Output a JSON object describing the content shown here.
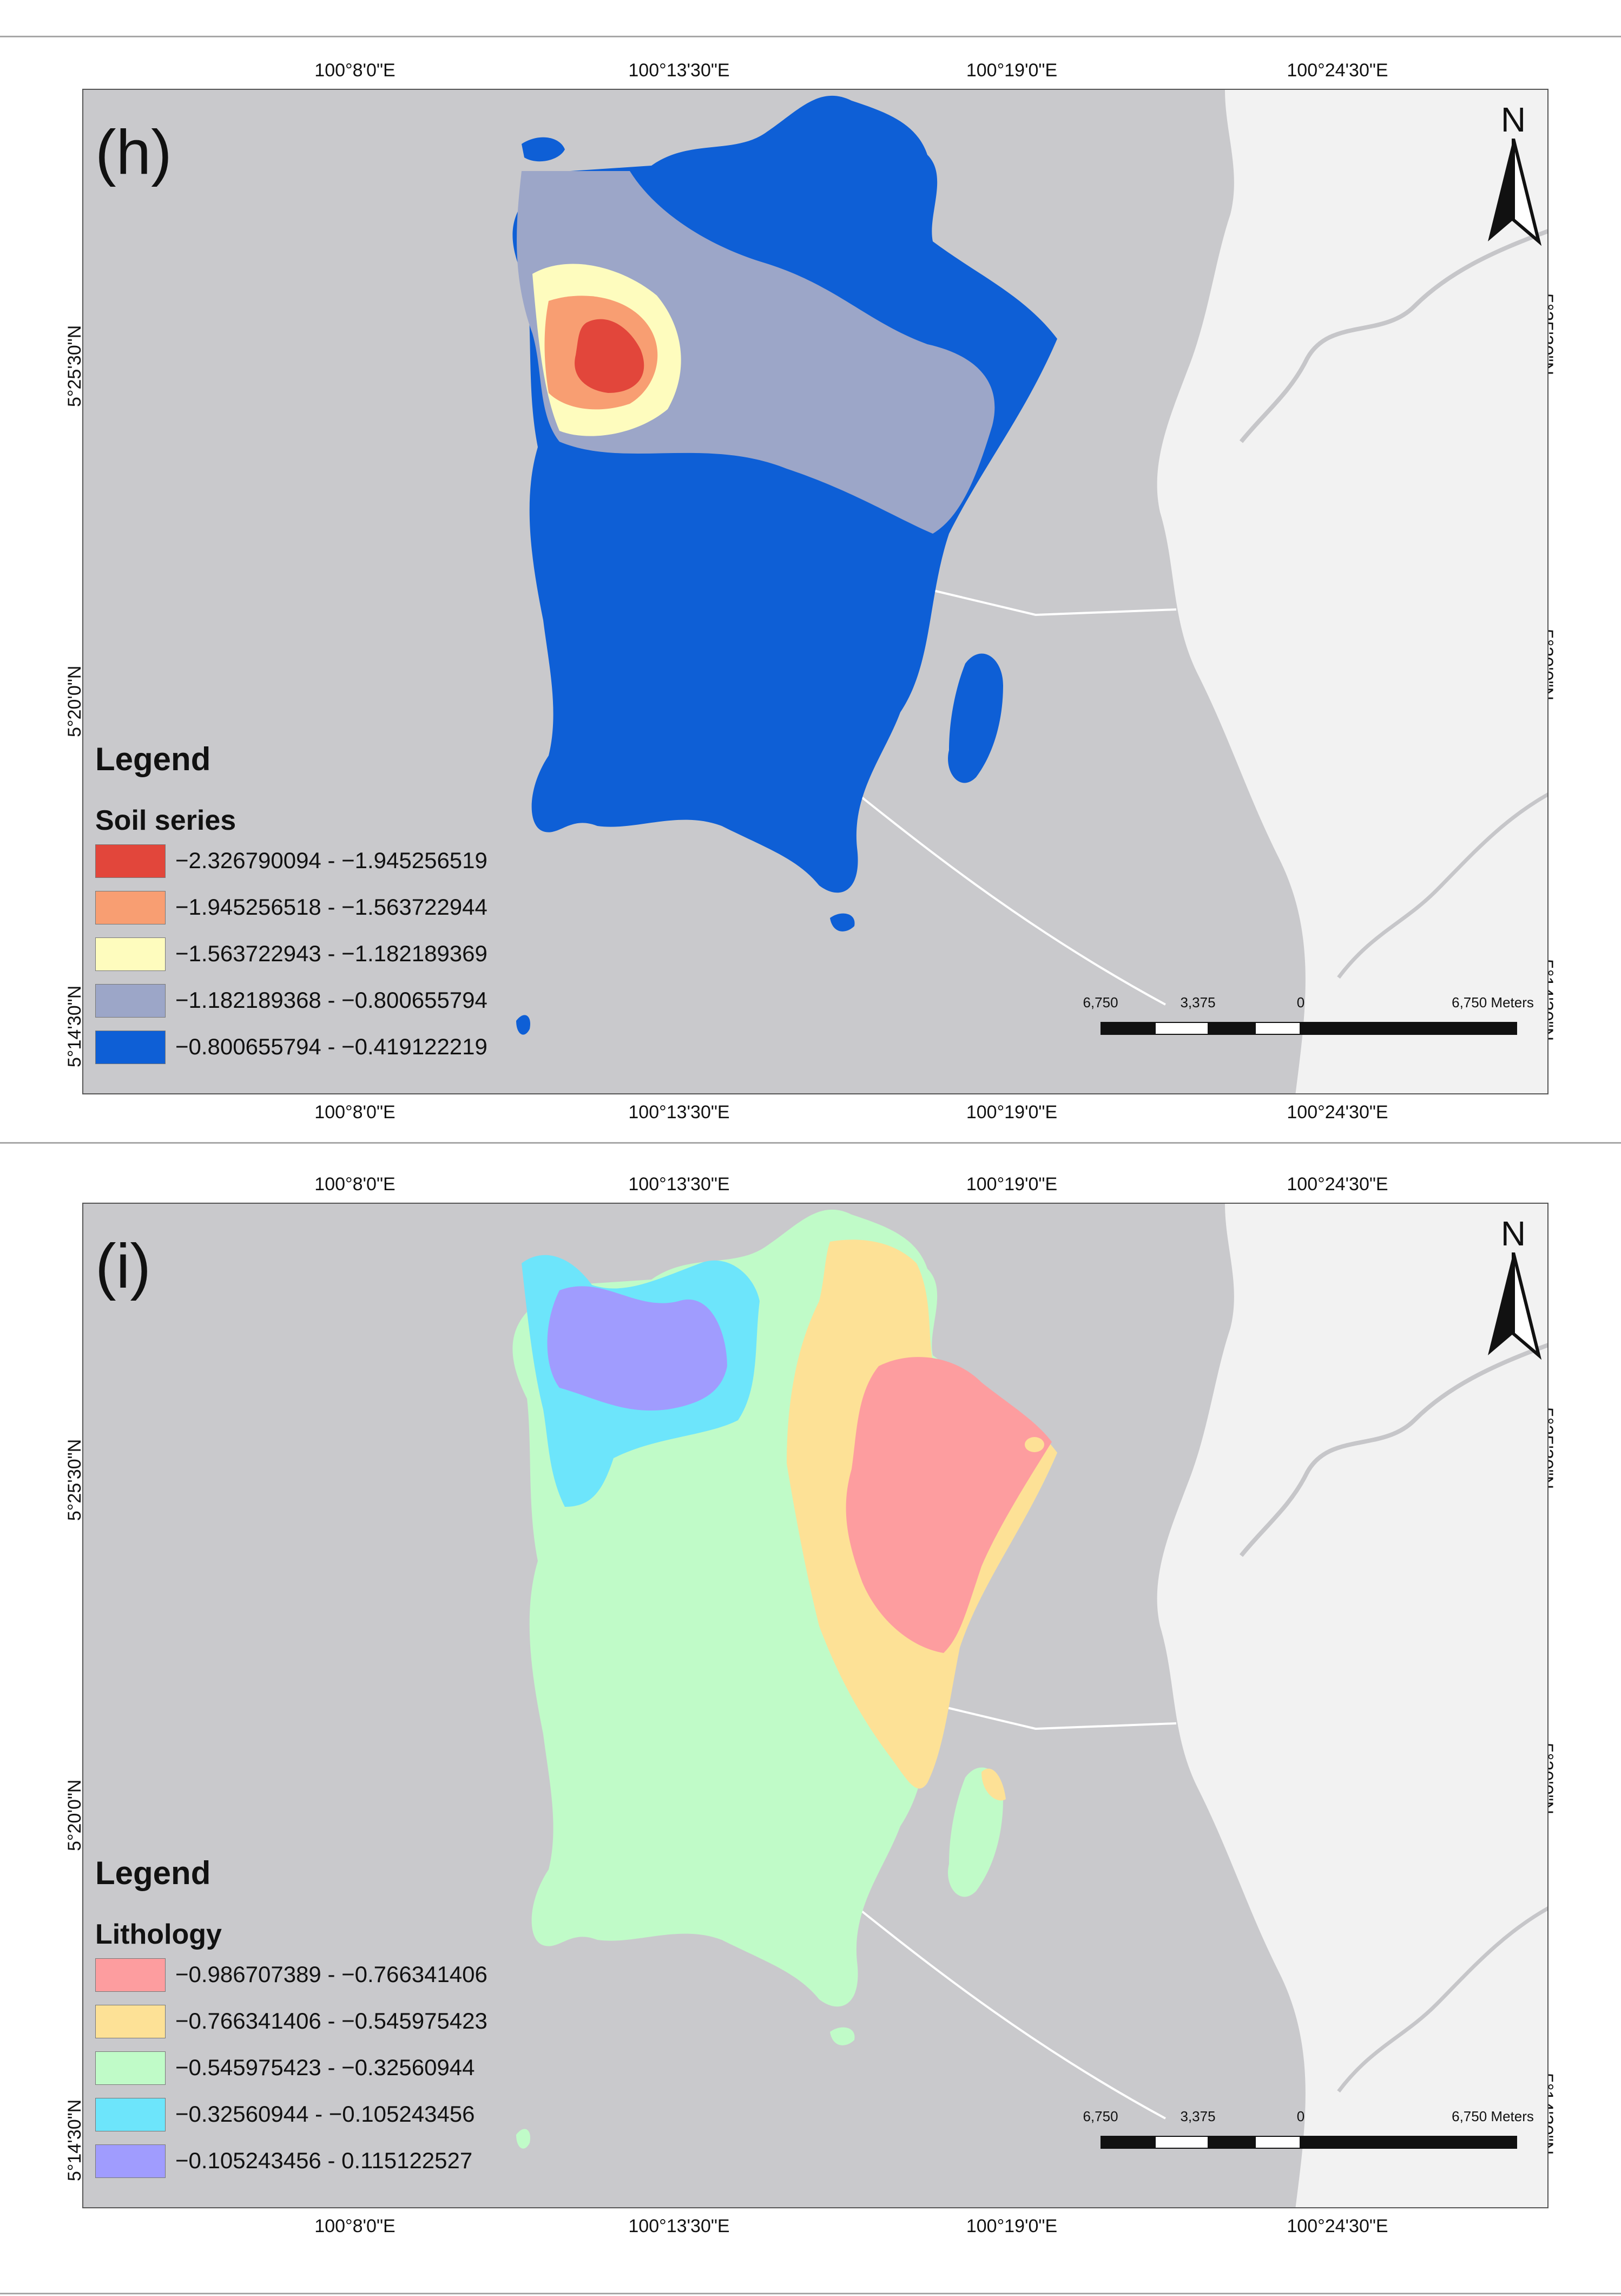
{
  "coords": {
    "lon": [
      "100°8'0\"E",
      "100°13'30\"E",
      "100°19'0\"E",
      "100°24'30\"E"
    ],
    "lat": [
      "5°14'30\"N",
      "5°20'0\"N",
      "5°25'30\"N"
    ]
  },
  "north": "N",
  "scale": {
    "labels": [
      "6,750",
      "3,375",
      "0",
      "6,750 Meters"
    ]
  },
  "panels": [
    {
      "label": "(h)",
      "legend_title": "Legend",
      "legend_subtitle": "Soil series",
      "items": [
        {
          "label": "−2.326790094 - −1.945256519",
          "color": "#e2463b"
        },
        {
          "label": "−1.945256518 - −1.563722944",
          "color": "#f89e72"
        },
        {
          "label": "−1.563722943 - −1.182189369",
          "color": "#fefcbe"
        },
        {
          "label": "−1.182189368 - −0.800655794",
          "color": "#9ca6c8"
        },
        {
          "label": "−0.800655794 - −0.419122219",
          "color": "#0e5fd6"
        }
      ]
    },
    {
      "label": "(i)",
      "legend_title": "Legend",
      "legend_subtitle": "Lithology",
      "items": [
        {
          "label": "−0.986707389 - −0.766341406",
          "color": "#fd9d9f"
        },
        {
          "label": "−0.766341406 - −0.545975423",
          "color": "#fde196"
        },
        {
          "label": "−0.545975423 - −0.32560944",
          "color": "#c0fbc8"
        },
        {
          "label": "−0.32560944 - −0.105243456",
          "color": "#6de5fb"
        },
        {
          "label": "−0.105243456 - 0.115122527",
          "color": "#a09cfe"
        }
      ]
    }
  ]
}
